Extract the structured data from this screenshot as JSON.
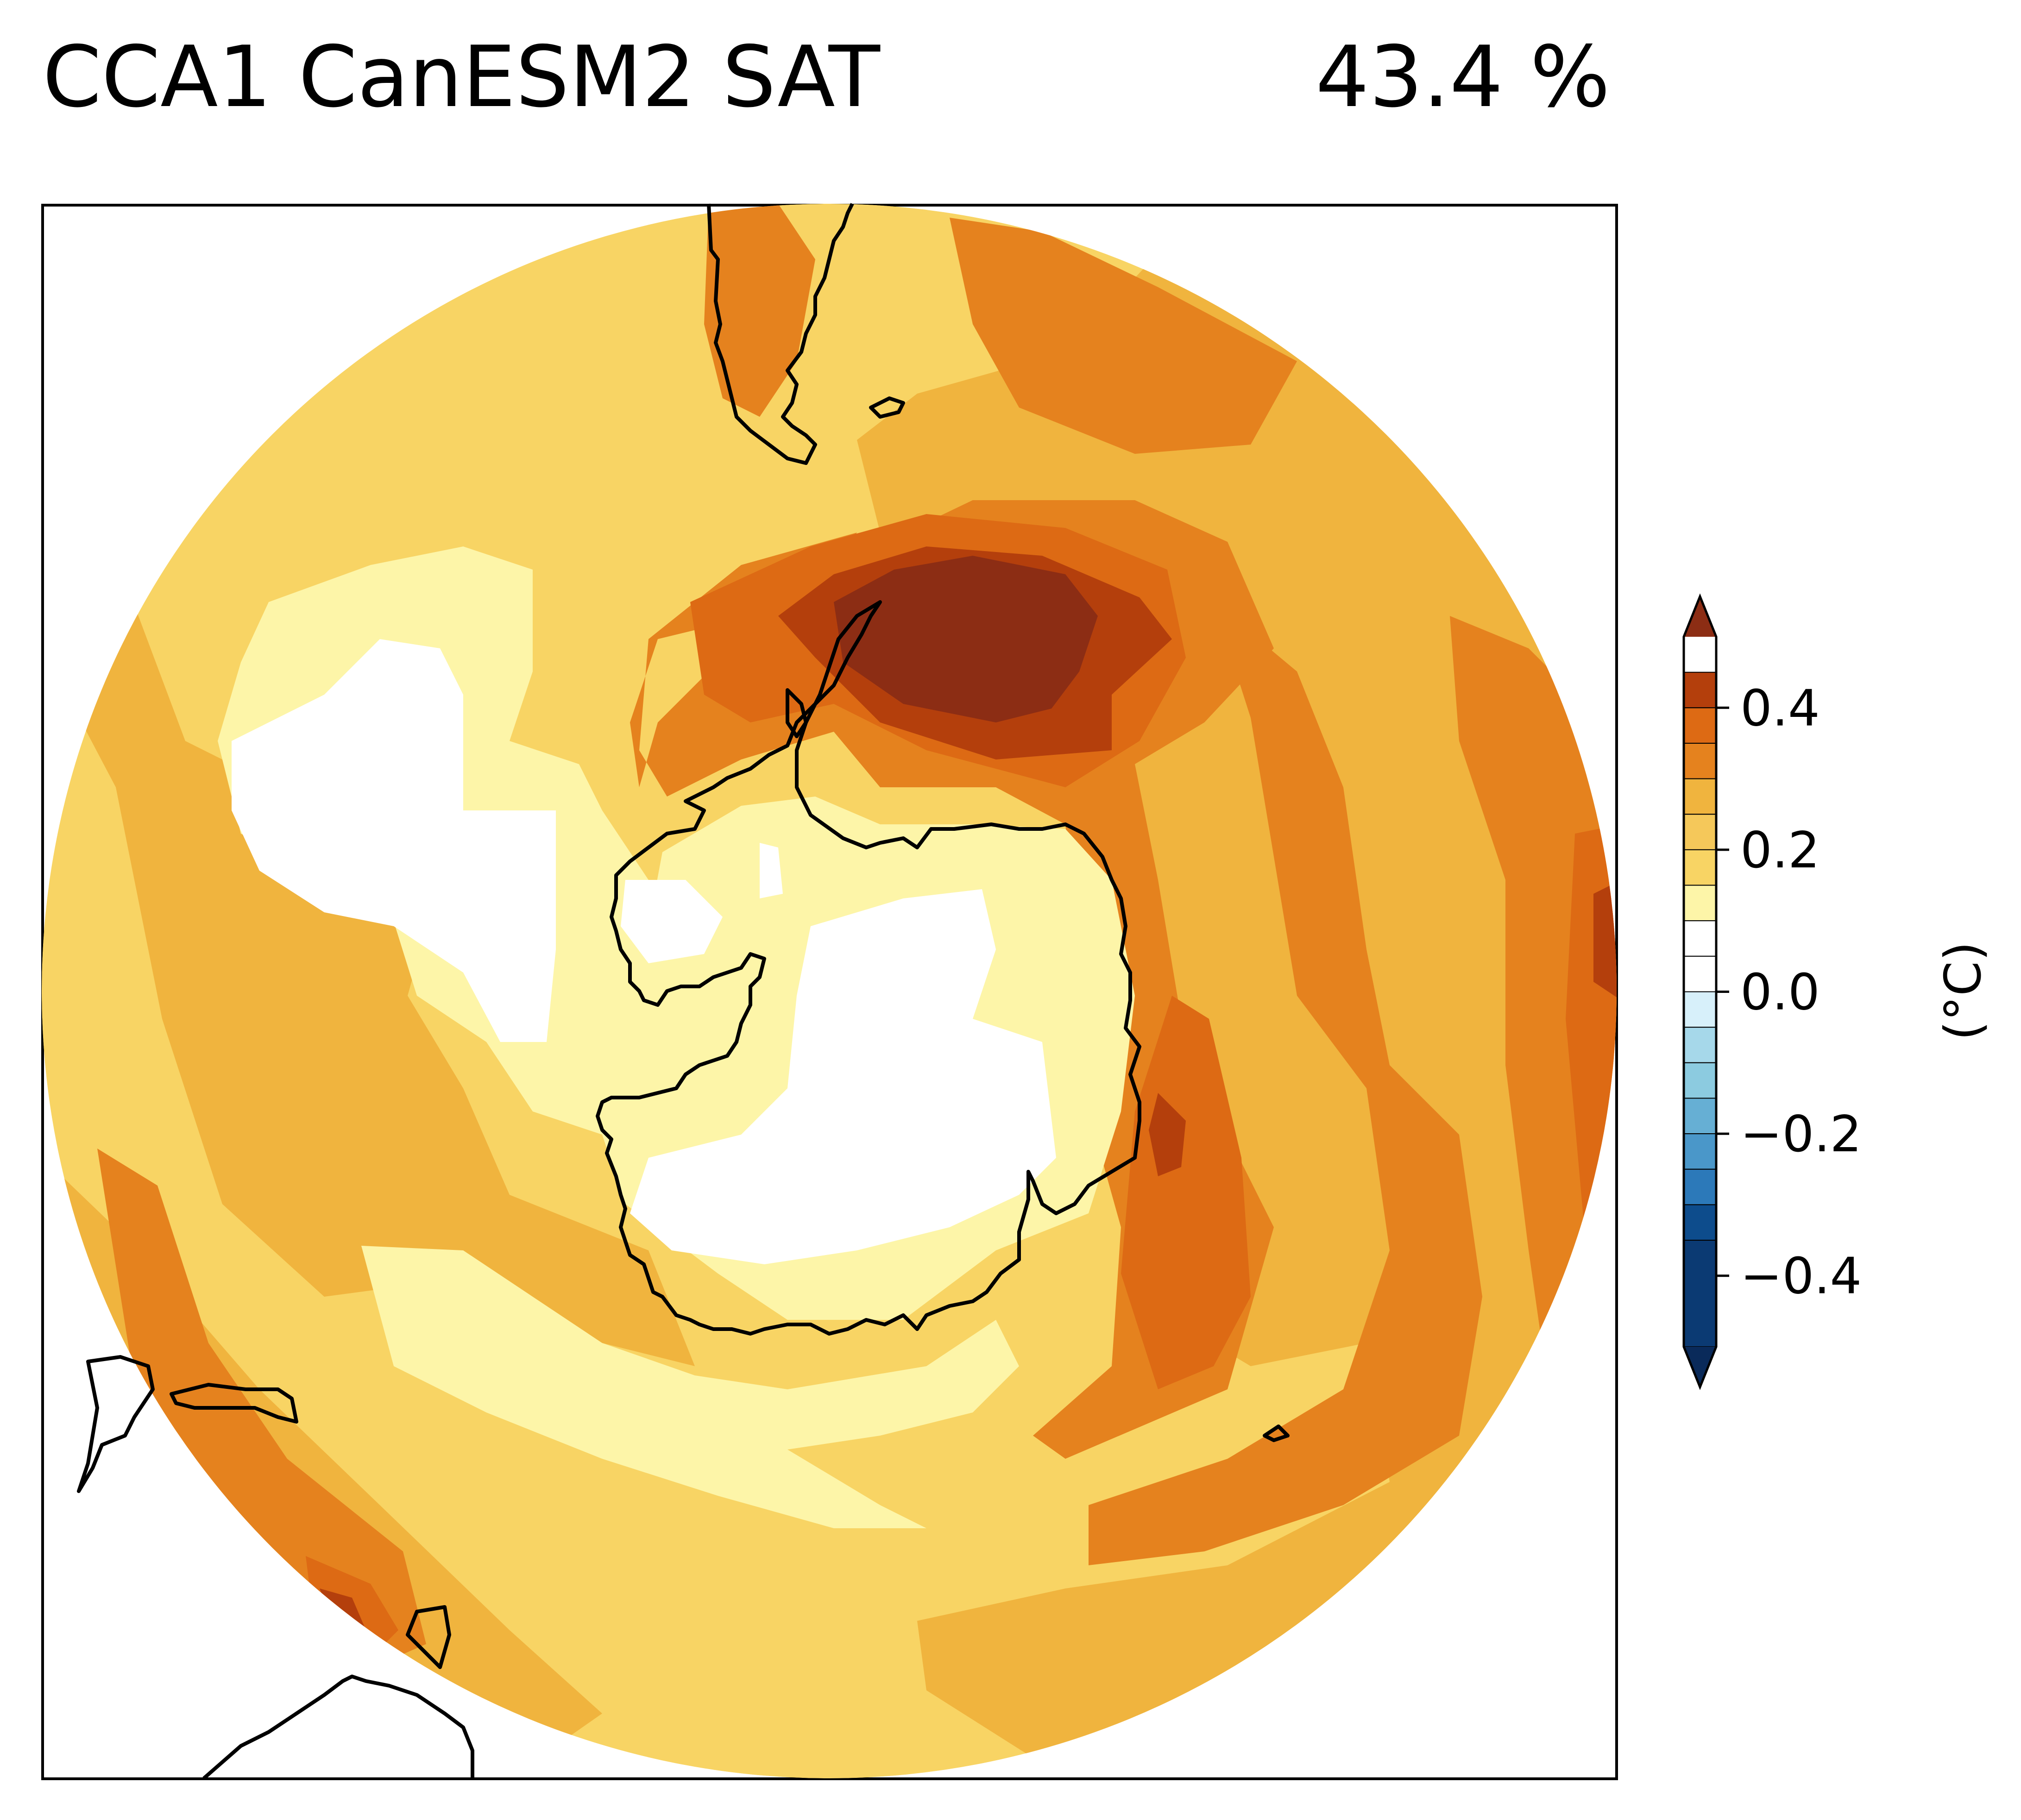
{
  "title": "CCA1 CanESM2 SAT",
  "variance_explained": "43.4 %",
  "colorbar": {
    "unit_label": "(°C)",
    "ticks": [
      "0.4",
      "0.2",
      "0.0",
      "−0.2",
      "−0.4"
    ],
    "tick_values": [
      0.4,
      0.2,
      0.0,
      -0.2,
      -0.4
    ],
    "range": [
      -0.5,
      0.5
    ],
    "levels_top_to_bottom": [
      {
        "upper": 0.45,
        "color": "#b43f0c"
      },
      {
        "upper": 0.4,
        "color": "#dd6a14"
      },
      {
        "upper": 0.35,
        "color": "#e5821e"
      },
      {
        "upper": 0.3,
        "color": "#f0b43e"
      },
      {
        "upper": 0.25,
        "color": "#f5c85a"
      },
      {
        "upper": 0.2,
        "color": "#f8d464"
      },
      {
        "upper": 0.15,
        "color": "#fdf5a8"
      },
      {
        "upper": 0.1,
        "color": "#ffffff"
      },
      {
        "upper": 0.05,
        "color": "#ffffff"
      },
      {
        "upper": 0.0,
        "color": "#d7f0fa"
      },
      {
        "upper": -0.05,
        "color": "#a6d8ea"
      },
      {
        "upper": -0.1,
        "color": "#8ccbe0"
      },
      {
        "upper": -0.15,
        "color": "#66afd4"
      },
      {
        "upper": -0.2,
        "color": "#4a97c9"
      },
      {
        "upper": -0.25,
        "color": "#2c79b9"
      },
      {
        "upper": -0.3,
        "color": "#0d4c8c"
      },
      {
        "upper": -0.35,
        "color": "#0b3a73"
      }
    ],
    "extend_max_color": "#8c2d14",
    "extend_min_color": "#0a2a5a"
  },
  "map": {
    "projection": "south-polar-stereographic",
    "colors": {
      "base": "#f8d464",
      "light": "#fdf5a8",
      "zero": "#ffffff",
      "mid": "#f0b43e",
      "orange": "#e5821e",
      "dark_orange": "#dd6a14",
      "red": "#b43f0c",
      "max": "#8c2d14",
      "coast": "#000000"
    }
  }
}
